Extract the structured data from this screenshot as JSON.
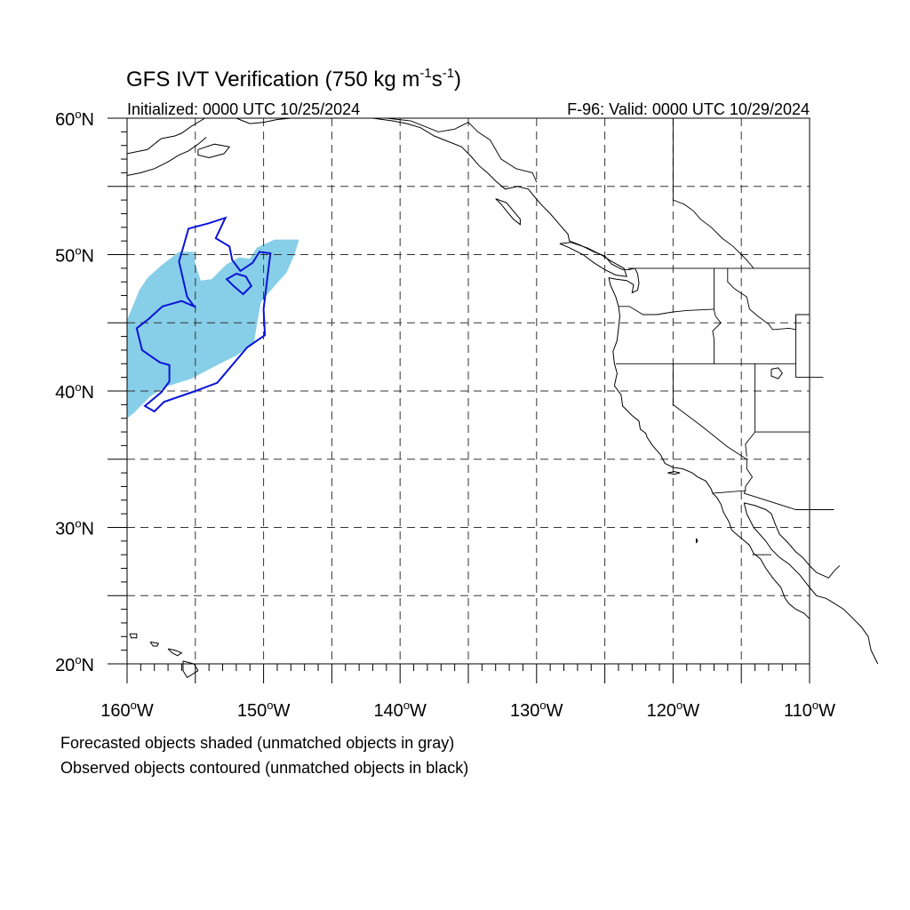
{
  "title": {
    "main": "GFS IVT Verification (750 kg m",
    "exp1": "-1",
    "mid": "s",
    "exp2": "-1",
    "end": ")"
  },
  "subtitle": {
    "left": "Initialized: 0000 UTC 10/25/2024",
    "right": "F-96: Valid: 0000 UTC 10/29/2024"
  },
  "map": {
    "lon_range": [
      -160,
      -110
    ],
    "lat_range": [
      20,
      60
    ],
    "lat_labels": [
      {
        "lat": 60,
        "num": "60",
        "deg": "o",
        "hem": "N"
      },
      {
        "lat": 50,
        "num": "50",
        "deg": "o",
        "hem": "N"
      },
      {
        "lat": 40,
        "num": "40",
        "deg": "o",
        "hem": "N"
      },
      {
        "lat": 30,
        "num": "30",
        "deg": "o",
        "hem": "N"
      },
      {
        "lat": 20,
        "num": "20",
        "deg": "o",
        "hem": "N"
      }
    ],
    "lon_labels": [
      {
        "lon": -160,
        "num": "160",
        "deg": "o",
        "hem": "W"
      },
      {
        "lon": -150,
        "num": "150",
        "deg": "o",
        "hem": "W"
      },
      {
        "lon": -140,
        "num": "140",
        "deg": "o",
        "hem": "W"
      },
      {
        "lon": -130,
        "num": "130",
        "deg": "o",
        "hem": "W"
      },
      {
        "lon": -120,
        "num": "120",
        "deg": "o",
        "hem": "W"
      },
      {
        "lon": -110,
        "num": "110",
        "deg": "o",
        "hem": "W"
      }
    ],
    "grid_lats": [
      25,
      30,
      35,
      40,
      45,
      50,
      55
    ],
    "grid_lons": [
      -155,
      -150,
      -145,
      -140,
      -135,
      -130,
      -125,
      -120,
      -115
    ],
    "colors": {
      "forecast_fill": "#87CEE8",
      "observed_contour": "#0A14D8",
      "coast": "#000000"
    }
  },
  "objects": {
    "forecast": {
      "color": "#87CEE8",
      "polygon": [
        [
          -160,
          38
        ],
        [
          -159.5,
          38.4
        ],
        [
          -158.3,
          39.6
        ],
        [
          -157.2,
          40.3
        ],
        [
          -155.3,
          40.9
        ],
        [
          -153.6,
          41.8
        ],
        [
          -152,
          42.6
        ],
        [
          -150.7,
          43.5
        ],
        [
          -150.5,
          44.8
        ],
        [
          -150.2,
          46.5
        ],
        [
          -149.2,
          47.7
        ],
        [
          -148.3,
          48.7
        ],
        [
          -147.7,
          50.1
        ],
        [
          -147.4,
          51.1
        ],
        [
          -149.2,
          51.1
        ],
        [
          -150.5,
          50.5
        ],
        [
          -151,
          49.7
        ],
        [
          -151.8,
          49.8
        ],
        [
          -152.7,
          49.3
        ],
        [
          -153.8,
          48.2
        ],
        [
          -154.6,
          48.1
        ],
        [
          -155,
          49.3
        ],
        [
          -155.1,
          50.2
        ],
        [
          -156.2,
          50.2
        ],
        [
          -157.5,
          49.2
        ],
        [
          -158.5,
          48.3
        ],
        [
          -159.1,
          47.4
        ],
        [
          -160,
          45.2
        ]
      ]
    },
    "observed": {
      "color": "#0A14D8",
      "polygon": [
        [
          -158,
          38.5
        ],
        [
          -157.3,
          39.2
        ],
        [
          -155,
          40
        ],
        [
          -153.4,
          40.6
        ],
        [
          -151.2,
          43.2
        ],
        [
          -149.9,
          44.1
        ],
        [
          -150,
          46
        ],
        [
          -149.7,
          48.5
        ],
        [
          -149.5,
          50.1
        ],
        [
          -150.3,
          50.2
        ],
        [
          -150.8,
          49.4
        ],
        [
          -151.7,
          48.8
        ],
        [
          -152.3,
          49.6
        ],
        [
          -152.5,
          50.6
        ],
        [
          -153.5,
          51.2
        ],
        [
          -152.8,
          52.7
        ],
        [
          -154,
          52.3
        ],
        [
          -155.5,
          51.9
        ],
        [
          -155.9,
          50.5
        ],
        [
          -156.2,
          49.5
        ],
        [
          -155.6,
          46.9
        ],
        [
          -155.1,
          46.2
        ],
        [
          -156,
          46.6
        ],
        [
          -157.4,
          46.2
        ],
        [
          -158.4,
          45.3
        ],
        [
          -159.3,
          44.6
        ],
        [
          -158.9,
          43
        ],
        [
          -157.6,
          42.1
        ],
        [
          -156.9,
          41.9
        ],
        [
          -156.9,
          40.7
        ],
        [
          -157.5,
          39.9
        ],
        [
          -158.7,
          38.9
        ]
      ],
      "inner_polygon": [
        [
          -151.5,
          47.1
        ],
        [
          -152.2,
          47.7
        ],
        [
          -152.7,
          48.2
        ],
        [
          -152,
          48.6
        ],
        [
          -151.3,
          48.4
        ],
        [
          -150.9,
          47.7
        ]
      ]
    }
  },
  "notes": {
    "line1": "Forecasted objects shaded (unmatched objects in gray)",
    "line2": "Observed objects contoured (unmatched objects in black)"
  }
}
